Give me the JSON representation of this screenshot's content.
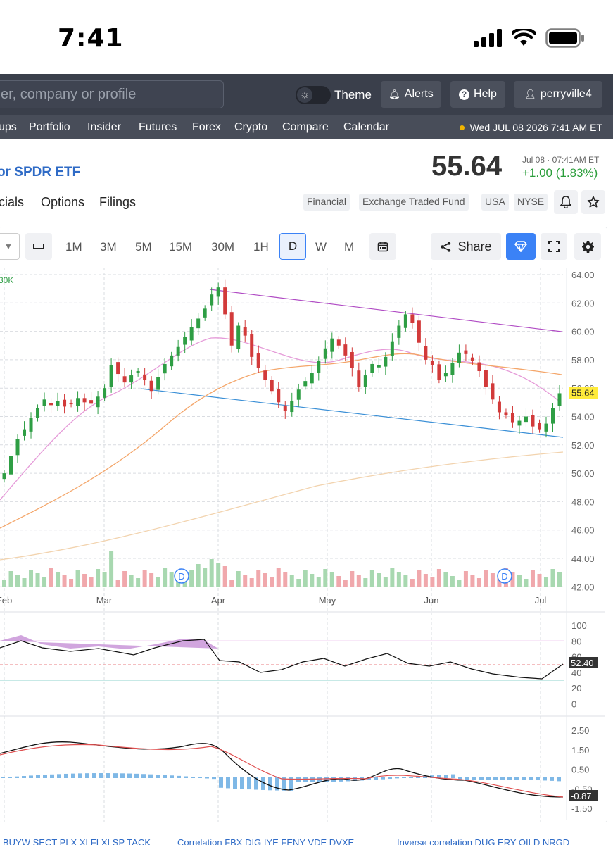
{
  "status": {
    "time": "7:41",
    "icons": [
      "cellular-signal-icon",
      "wifi-icon",
      "battery-icon"
    ]
  },
  "topbar": {
    "search_placeholder": "er, company or profile",
    "theme_label": "Theme",
    "alerts_label": "Alerts",
    "help_label": "Help",
    "user_label": "perryville4"
  },
  "nav": {
    "items": [
      "ups",
      "Portfolio",
      "Insider",
      "Futures",
      "Forex",
      "Crypto",
      "Compare",
      "Calendar"
    ],
    "datetime": "Wed JUL 08 2026 7:41 AM ET"
  },
  "ticker": {
    "name": "or SPDR ETF",
    "price": "55.64",
    "time": "Jul 08 · 07:41AM ET",
    "change": "+1.00 (1.83%)",
    "change_color": "#2a9d3a"
  },
  "subtabs": [
    "cials",
    "Options",
    "Filings"
  ],
  "tags": [
    "Financial",
    "Exchange Traded Fund",
    "USA",
    "NYSE"
  ],
  "timeframes": [
    "1M",
    "3M",
    "5M",
    "15M",
    "30M",
    "1H",
    "D",
    "W",
    "M"
  ],
  "active_timeframe": "D",
  "toolbar": {
    "share_label": "Share"
  },
  "chart_data": {
    "type": "candlestick",
    "volume_label": "30K",
    "last_price_label": "55.64",
    "y_ticks": [
      "64.00",
      "62.00",
      "60.00",
      "58.00",
      "56.00",
      "54.00",
      "52.00",
      "50.00",
      "48.00",
      "46.00",
      "44.00",
      "42.00"
    ],
    "x_ticks": [
      "Feb",
      "Mar",
      "Apr",
      "May",
      "Jun",
      "Jul"
    ],
    "dividend_marker": "D",
    "up_color": "#2e9e44",
    "down_color": "#d23a3a",
    "candles_close": [
      50.0,
      51.2,
      52.4,
      53.1,
      53.9,
      54.6,
      55.2,
      54.8,
      55.1,
      54.7,
      54.9,
      55.3,
      55.0,
      54.9,
      55.4,
      56.0,
      57.6,
      57.0,
      56.4,
      56.9,
      57.2,
      56.6,
      55.8,
      56.8,
      57.7,
      58.3,
      58.9,
      59.6,
      60.3,
      60.9,
      61.6,
      62.6,
      63.1,
      61.2,
      59.0,
      60.4,
      59.7,
      58.2,
      57.4,
      56.6,
      55.8,
      55.0,
      54.4,
      55.1,
      55.9,
      56.5,
      57.1,
      57.9,
      58.8,
      59.5,
      59.0,
      58.3,
      57.4,
      56.1,
      56.9,
      57.7,
      57.6,
      58.2,
      59.3,
      60.4,
      61.2,
      60.6,
      59.2,
      58.0,
      57.6,
      56.6,
      57.1,
      57.8,
      58.5,
      58.4,
      57.9,
      57.2,
      56.1,
      55.2,
      54.3,
      54.1,
      53.6,
      53.7,
      54.0,
      53.3,
      53.1,
      53.5,
      54.6,
      55.64
    ],
    "moving_averages": [
      "20-day (pink)",
      "50-day (orange)",
      "200-day (tan)"
    ],
    "trendlines": [
      "upper resistance (purple)",
      "lower support (blue)"
    ],
    "rsi": {
      "ticks": [
        "100",
        "80",
        "60",
        "40",
        "20",
        "0"
      ],
      "value_label": "52.40"
    },
    "macd": {
      "ticks": [
        "2.50",
        "1.50",
        "0.50",
        "-0.50",
        "-1.50"
      ],
      "value_label": "-0.87"
    }
  },
  "footer": {
    "left": "BUYW SECT PLX XLFI XLSP TACK",
    "middle": "Correlation  FBX DIG IYE FENY VDE DVXE",
    "right": "Inverse correlation  DUG ERY OILD NRGD"
  }
}
